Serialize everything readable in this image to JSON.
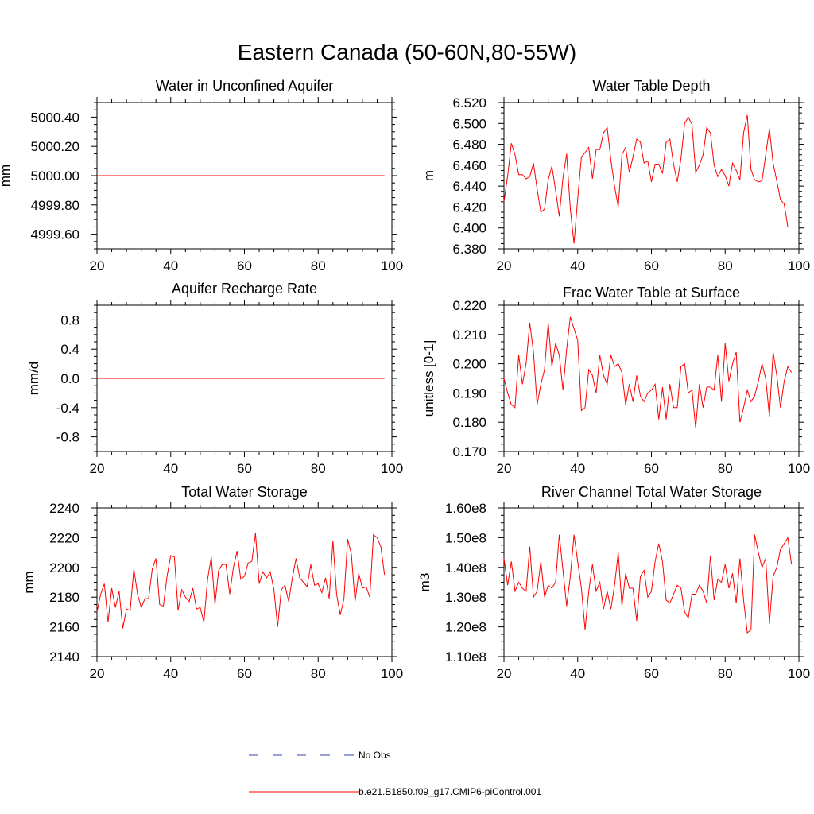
{
  "figure": {
    "title": "Eastern Canada (50-60N,80-55W)",
    "colors": {
      "model": "#ff0000",
      "obs": "#3344aa",
      "axis": "#000000"
    }
  },
  "legend": {
    "entries": [
      {
        "label": "No Obs",
        "style": "dashed",
        "color": "#3344aa"
      },
      {
        "label": "b.e21.B1850.f09_g17.CMIP6-piControl.001",
        "style": "solid",
        "color": "#ff0000"
      }
    ]
  },
  "chart_data": [
    {
      "type": "line",
      "title": "Water in Unconfined Aquifer",
      "ylabel": "mm",
      "xlim": [
        20,
        100
      ],
      "ylim": [
        4999.5,
        5000.5
      ],
      "xticks": [
        20,
        40,
        60,
        80,
        100
      ],
      "xtick_labels": [
        "20",
        "40",
        "60",
        "80",
        "100"
      ],
      "yticks": [
        4999.6,
        4999.8,
        5000.0,
        5000.2,
        5000.4
      ],
      "ytick_labels": [
        "4999.60",
        "4999.80",
        "5000.00",
        "5000.20",
        "5000.40"
      ],
      "x_start": 20,
      "series": [
        {
          "name": "b.e21.B1850.f09_g17.CMIP6-piControl.001",
          "values": [
            5000,
            5000,
            5000,
            5000,
            5000,
            5000,
            5000,
            5000,
            5000,
            5000,
            5000,
            5000,
            5000,
            5000,
            5000,
            5000,
            5000,
            5000,
            5000,
            5000,
            5000,
            5000,
            5000,
            5000,
            5000,
            5000,
            5000,
            5000,
            5000,
            5000,
            5000,
            5000,
            5000,
            5000,
            5000,
            5000,
            5000,
            5000,
            5000,
            5000,
            5000,
            5000,
            5000,
            5000,
            5000,
            5000,
            5000,
            5000,
            5000,
            5000,
            5000,
            5000,
            5000,
            5000,
            5000,
            5000,
            5000,
            5000,
            5000,
            5000,
            5000,
            5000,
            5000,
            5000,
            5000,
            5000,
            5000,
            5000,
            5000,
            5000,
            5000,
            5000,
            5000,
            5000,
            5000,
            5000,
            5000,
            5000,
            5000
          ]
        }
      ]
    },
    {
      "type": "line",
      "title": "Water Table Depth",
      "ylabel": "m",
      "xlim": [
        20,
        100
      ],
      "ylim": [
        6.38,
        6.52
      ],
      "xticks": [
        20,
        40,
        60,
        80,
        100
      ],
      "xtick_labels": [
        "20",
        "40",
        "60",
        "80",
        "100"
      ],
      "yticks": [
        6.38,
        6.4,
        6.42,
        6.44,
        6.46,
        6.48,
        6.5,
        6.52
      ],
      "ytick_labels": [
        "6.380",
        "6.400",
        "6.420",
        "6.440",
        "6.460",
        "6.480",
        "6.500",
        "6.520"
      ],
      "x_start": 20,
      "series": [
        {
          "name": "b.e21.B1850.f09_g17.CMIP6-piControl.001",
          "values": [
            6.425,
            6.45,
            6.481,
            6.47,
            6.451,
            6.451,
            6.447,
            6.449,
            6.462,
            6.437,
            6.415,
            6.418,
            6.446,
            6.459,
            6.436,
            6.411,
            6.448,
            6.471,
            6.418,
            6.385,
            6.428,
            6.468,
            6.472,
            6.477,
            6.447,
            6.475,
            6.475,
            6.491,
            6.496,
            6.465,
            6.44,
            6.42,
            6.47,
            6.477,
            6.453,
            6.468,
            6.485,
            6.482,
            6.462,
            6.464,
            6.444,
            6.461,
            6.461,
            6.452,
            6.482,
            6.485,
            6.461,
            6.444,
            6.466,
            6.5,
            6.506,
            6.499,
            6.453,
            6.46,
            6.47,
            6.496,
            6.491,
            6.46,
            6.449,
            6.456,
            6.45,
            6.44,
            6.462,
            6.455,
            6.446,
            6.491,
            6.508,
            6.456,
            6.446,
            6.444,
            6.445,
            6.47,
            6.495,
            6.462,
            6.445,
            6.427,
            6.423,
            6.401
          ]
        }
      ]
    },
    {
      "type": "line",
      "title": "Aquifer Recharge Rate",
      "ylabel": "mm/d",
      "xlim": [
        20,
        100
      ],
      "ylim": [
        -1.0,
        1.0
      ],
      "xticks": [
        20,
        40,
        60,
        80,
        100
      ],
      "xtick_labels": [
        "20",
        "40",
        "60",
        "80",
        "100"
      ],
      "yticks": [
        -0.8,
        -0.4,
        0.0,
        0.4,
        0.8
      ],
      "ytick_labels": [
        "-0.8",
        "-0.4",
        "0.0",
        "0.4",
        "0.8"
      ],
      "x_start": 20,
      "series": [
        {
          "name": "b.e21.B1850.f09_g17.CMIP6-piControl.001",
          "values": [
            0,
            0,
            0,
            0,
            0,
            0,
            0,
            0,
            0,
            0,
            0,
            0,
            0,
            0,
            0,
            0,
            0,
            0,
            0,
            0,
            0,
            0,
            0,
            0,
            0,
            0,
            0,
            0,
            0,
            0,
            0,
            0,
            0,
            0,
            0,
            0,
            0,
            0,
            0,
            0,
            0,
            0,
            0,
            0,
            0,
            0,
            0,
            0,
            0,
            0,
            0,
            0,
            0,
            0,
            0,
            0,
            0,
            0,
            0,
            0,
            0,
            0,
            0,
            0,
            0,
            0,
            0,
            0,
            0,
            0,
            0,
            0,
            0,
            0,
            0,
            0,
            0,
            0,
            0
          ]
        }
      ]
    },
    {
      "type": "line",
      "title": "Frac Water Table at Surface",
      "ylabel": "unitless [0-1]",
      "xlim": [
        20,
        100
      ],
      "ylim": [
        0.17,
        0.22
      ],
      "xticks": [
        20,
        40,
        60,
        80,
        100
      ],
      "xtick_labels": [
        "20",
        "40",
        "60",
        "80",
        "100"
      ],
      "yticks": [
        0.17,
        0.18,
        0.19,
        0.2,
        0.21,
        0.22
      ],
      "ytick_labels": [
        "0.170",
        "0.180",
        "0.190",
        "0.200",
        "0.210",
        "0.220"
      ],
      "x_start": 20,
      "series": [
        {
          "name": "b.e21.B1850.f09_g17.CMIP6-piControl.001",
          "values": [
            0.195,
            0.19,
            0.186,
            0.185,
            0.203,
            0.193,
            0.2,
            0.214,
            0.204,
            0.186,
            0.193,
            0.198,
            0.214,
            0.199,
            0.207,
            0.203,
            0.191,
            0.205,
            0.216,
            0.212,
            0.208,
            0.184,
            0.185,
            0.198,
            0.196,
            0.19,
            0.203,
            0.196,
            0.193,
            0.203,
            0.199,
            0.2,
            0.197,
            0.186,
            0.193,
            0.187,
            0.196,
            0.189,
            0.187,
            0.19,
            0.191,
            0.193,
            0.181,
            0.192,
            0.181,
            0.193,
            0.185,
            0.185,
            0.199,
            0.2,
            0.19,
            0.191,
            0.178,
            0.193,
            0.185,
            0.192,
            0.192,
            0.191,
            0.203,
            0.187,
            0.207,
            0.194,
            0.2,
            0.204,
            0.18,
            0.185,
            0.191,
            0.187,
            0.189,
            0.194,
            0.2,
            0.195,
            0.182,
            0.204,
            0.196,
            0.185,
            0.194,
            0.199,
            0.197
          ]
        }
      ]
    },
    {
      "type": "line",
      "title": "Total Water Storage",
      "ylabel": "mm",
      "xlim": [
        20,
        100
      ],
      "ylim": [
        2140,
        2240
      ],
      "xticks": [
        20,
        40,
        60,
        80,
        100
      ],
      "xtick_labels": [
        "20",
        "40",
        "60",
        "80",
        "100"
      ],
      "yticks": [
        2140,
        2160,
        2180,
        2200,
        2220,
        2240
      ],
      "ytick_labels": [
        "2140",
        "2160",
        "2180",
        "2200",
        "2220",
        "2240"
      ],
      "x_start": 20,
      "series": [
        {
          "name": "b.e21.B1850.f09_g17.CMIP6-piControl.001",
          "values": [
            2170,
            2182,
            2189,
            2163,
            2186,
            2173,
            2184,
            2159,
            2172,
            2171,
            2199,
            2182,
            2173,
            2179,
            2179,
            2199,
            2206,
            2175,
            2174,
            2194,
            2208,
            2207,
            2171,
            2185,
            2180,
            2177,
            2186,
            2172,
            2173,
            2163,
            2192,
            2207,
            2175,
            2198,
            2202,
            2202,
            2182,
            2200,
            2211,
            2192,
            2194,
            2203,
            2204,
            2223,
            2189,
            2197,
            2193,
            2197,
            2185,
            2160,
            2185,
            2188,
            2177,
            2193,
            2206,
            2193,
            2190,
            2187,
            2202,
            2188,
            2189,
            2183,
            2193,
            2179,
            2218,
            2182,
            2168,
            2179,
            2219,
            2209,
            2177,
            2196,
            2186,
            2187,
            2180,
            2222,
            2220,
            2214,
            2195
          ]
        }
      ]
    },
    {
      "type": "line",
      "title": "River Channel Total Water Storage",
      "ylabel": "m3",
      "xlim": [
        20,
        100
      ],
      "ylim": [
        110000000.0,
        160000000.0
      ],
      "xticks": [
        20,
        40,
        60,
        80,
        100
      ],
      "xtick_labels": [
        "20",
        "40",
        "60",
        "80",
        "100"
      ],
      "yticks": [
        110000000.0,
        120000000.0,
        130000000.0,
        140000000.0,
        150000000.0,
        160000000.0
      ],
      "ytick_labels": [
        "1.10e8",
        "1.20e8",
        "1.30e8",
        "1.40e8",
        "1.50e8",
        "1.60e8"
      ],
      "x_start": 20,
      "series": [
        {
          "name": "b.e21.B1850.f09_g17.CMIP6-piControl.001",
          "values": [
            143000000.0,
            134000000.0,
            142000000.0,
            132000000.0,
            135000000.0,
            133000000.0,
            132000000.0,
            147000000.0,
            130000000.0,
            132000000.0,
            142000000.0,
            130000000.0,
            134000000.0,
            133000000.0,
            135000000.0,
            151000000.0,
            139000000.0,
            127000000.0,
            137000000.0,
            151000000.0,
            142000000.0,
            133000000.0,
            119000000.0,
            132000000.0,
            141000000.0,
            132000000.0,
            135000000.0,
            126000000.0,
            132000000.0,
            126000000.0,
            134000000.0,
            145000000.0,
            127000000.0,
            138000000.0,
            133000000.0,
            133000000.0,
            122000000.0,
            137000000.0,
            139000000.0,
            130000000.0,
            132000000.0,
            142000000.0,
            148000000.0,
            142000000.0,
            129000000.0,
            128000000.0,
            131000000.0,
            134000000.0,
            133000000.0,
            125000000.0,
            123000000.0,
            131000000.0,
            131000000.0,
            134000000.0,
            132000000.0,
            128000000.0,
            144000000.0,
            129000000.0,
            136000000.0,
            135000000.0,
            141000000.0,
            133000000.0,
            138000000.0,
            128000000.0,
            143000000.0,
            129000000.0,
            118000000.0,
            119000000.0,
            151000000.0,
            145000000.0,
            140000000.0,
            143000000.0,
            121000000.0,
            137000000.0,
            140000000.0,
            146000000.0,
            148000000.0,
            150000000.0,
            141000000.0
          ]
        }
      ]
    }
  ]
}
